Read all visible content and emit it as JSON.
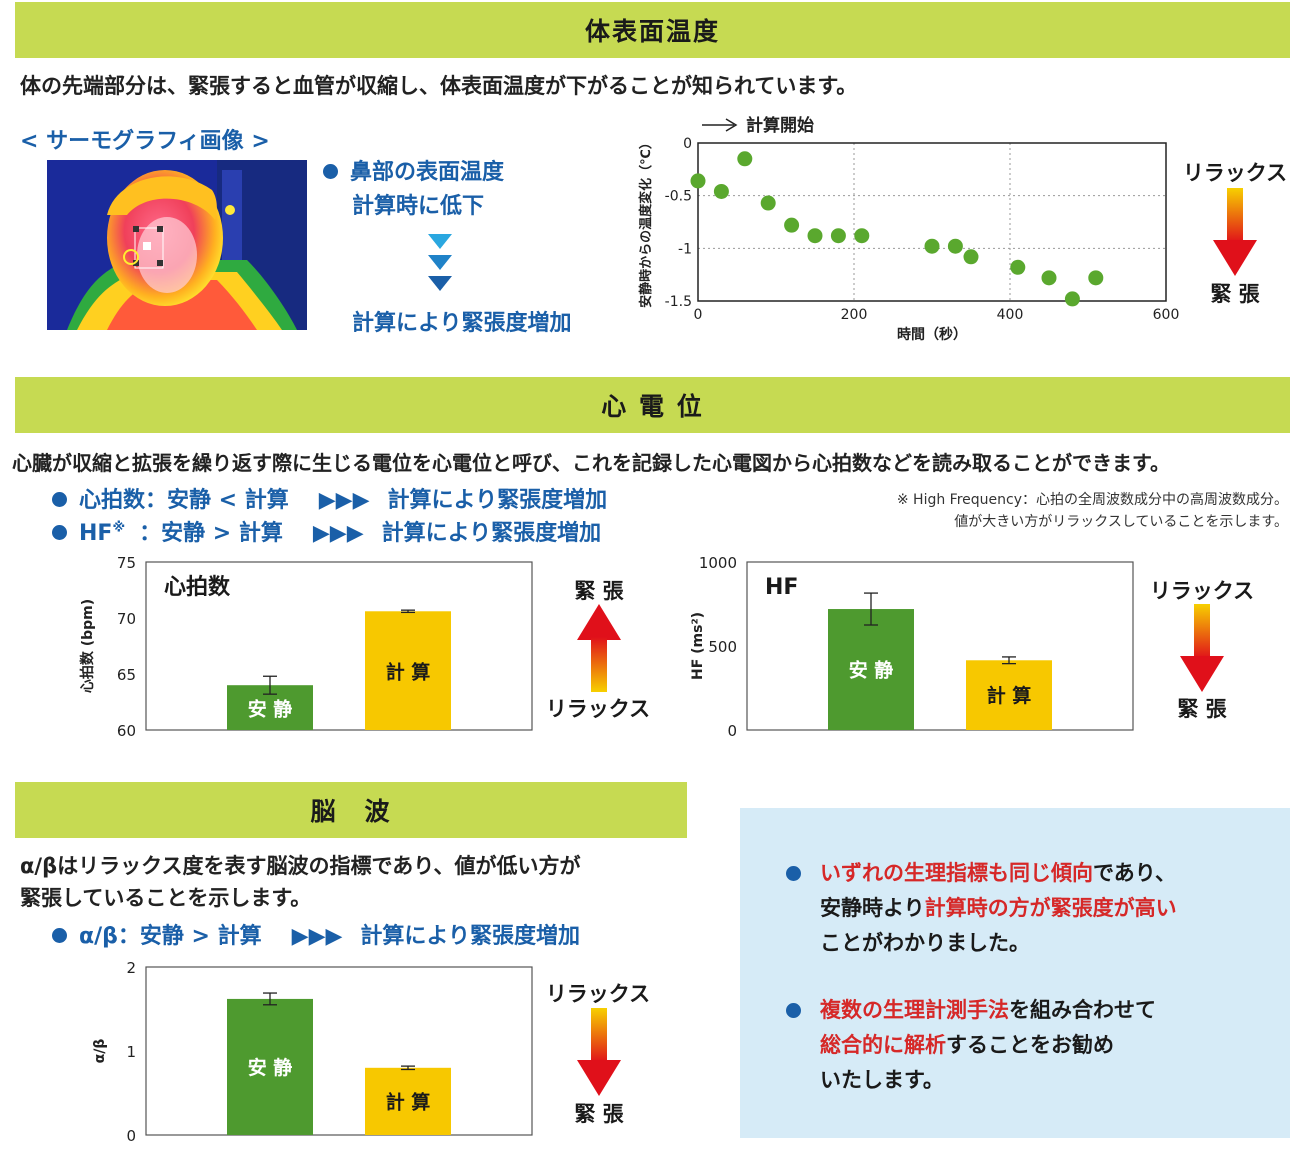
{
  "section_temp": {
    "title": "体表面温度",
    "intro": "体の先端部分は、緊張すると血管が収縮し、体表面温度が下がることが知られています。",
    "thermo_label": "< サーモグラフィ画像 >",
    "point_line1": "鼻部の表面温度",
    "point_line2": "計算時に低下",
    "result": "計算により緊張度増加",
    "arrow_top": "リラックス",
    "arrow_bottom": "緊 張"
  },
  "section_ecg": {
    "title": "心 電 位",
    "intro": "心臓が収縮と拡張を繰り返す際に生じる電位を心電位と呼び、これを記録した心電図から心拍数などを読み取ることができます。",
    "bullet1_label": "心拍数：安静 < 計算",
    "bullet1_arrows": "▶▶▶",
    "bullet1_result": "計算により緊張度増加",
    "bullet2_label": "HF",
    "bullet2_mark": "※",
    "bullet2_cmp": "：安静 > 計算",
    "bullet2_arrows": "▶▶▶",
    "bullet2_result": "計算により緊張度増加",
    "note_line1": "※ High Frequency：心拍の全周波数成分中の高周波数成分。",
    "note_line2": "値が大きい方がリラックスしていることを示します。",
    "hr_arrow_top": "緊 張",
    "hr_arrow_bottom": "リラックス",
    "hf_arrow_top": "リラックス",
    "hf_arrow_bottom": "緊 張"
  },
  "section_eeg": {
    "title": "脳　波",
    "intro_line1": "α/βはリラックス度を表す脳波の指標であり、値が低い方が",
    "intro_line2": "緊張していることを示します。",
    "bullet_label": "α/β：安静 > 計算",
    "bullet_arrows": "▶▶▶",
    "bullet_result": "計算により緊張度増加",
    "arrow_top": "リラックス",
    "arrow_bottom": "緊 張"
  },
  "summary": {
    "p1_red1": "いずれの生理指標も同じ傾向",
    "p1_text1": "であり、",
    "p1_text2": "安静時より",
    "p1_red2": "計算時の方が緊張度が高い",
    "p1_text3": "ことがわかりました。",
    "p2_red1": "複数の生理計測手法",
    "p2_text1": "を組み合わせて",
    "p2_red2": "総合的に解析",
    "p2_text2": "することをお勧め",
    "p2_text3": "いたします。"
  },
  "colors": {
    "band": "#c6da52",
    "accent_blue": "#1a5fa8",
    "rest_green": "#4e9a2f",
    "calc_yellow": "#f7c800",
    "dot_green": "#5aa82e",
    "highlight_red": "#d62828",
    "summary_bg": "#d6ebf7"
  },
  "chart_data": [
    {
      "id": "temp",
      "type": "scatter",
      "xlabel": "時間（秒）",
      "ylabel": "安静時からの温度変化（℃）",
      "annotation": "計算開始",
      "xlim": [
        0,
        600
      ],
      "ylim": [
        -1.5,
        0
      ],
      "xticks": [
        "0",
        "200",
        "400",
        "600"
      ],
      "yticks": [
        "0",
        "-0.5",
        "-1",
        "-1.5"
      ],
      "grid": true,
      "points": [
        {
          "x": 0,
          "y": -0.36
        },
        {
          "x": 30,
          "y": -0.46
        },
        {
          "x": 60,
          "y": -0.15
        },
        {
          "x": 90,
          "y": -0.57
        },
        {
          "x": 120,
          "y": -0.78
        },
        {
          "x": 150,
          "y": -0.88
        },
        {
          "x": 180,
          "y": -0.88
        },
        {
          "x": 210,
          "y": -0.88
        },
        {
          "x": 300,
          "y": -0.98
        },
        {
          "x": 330,
          "y": -0.98
        },
        {
          "x": 350,
          "y": -1.08
        },
        {
          "x": 410,
          "y": -1.18
        },
        {
          "x": 450,
          "y": -1.28
        },
        {
          "x": 480,
          "y": -1.48
        },
        {
          "x": 510,
          "y": -1.28
        }
      ]
    },
    {
      "id": "hr",
      "type": "bar",
      "title": "心拍数",
      "ylabel": "心拍数 (bpm)",
      "ylim": [
        60,
        75
      ],
      "yticks": [
        "60",
        "65",
        "70",
        "75"
      ],
      "categories": [
        "安 静",
        "計 算"
      ],
      "values": [
        64.0,
        70.6
      ],
      "errors": [
        0.8,
        0.1
      ]
    },
    {
      "id": "hf",
      "type": "bar",
      "title": "HF",
      "ylabel": "HF (ms²)",
      "ylim": [
        0,
        1000
      ],
      "yticks": [
        "0",
        "500",
        "1000"
      ],
      "categories": [
        "安 静",
        "計 算"
      ],
      "values": [
        720,
        415
      ],
      "errors": [
        95,
        20
      ]
    },
    {
      "id": "ab",
      "type": "bar",
      "ylabel": "α/β",
      "ylim": [
        0,
        2
      ],
      "yticks": [
        "0",
        "1",
        "2"
      ],
      "categories": [
        "安 静",
        "計 算"
      ],
      "values": [
        1.62,
        0.8
      ],
      "errors": [
        0.07,
        0.02
      ]
    }
  ]
}
